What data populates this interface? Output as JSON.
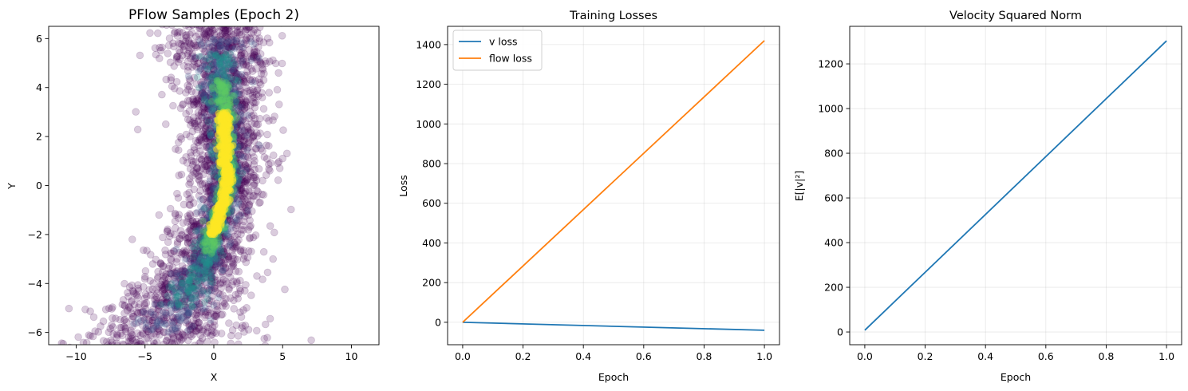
{
  "chart_data": [
    {
      "type": "scatter",
      "title": "PFlow Samples (Epoch 2)",
      "xlabel": "X",
      "ylabel": "Y",
      "xlim": [
        -12,
        12
      ],
      "ylim": [
        -6.5,
        6.5
      ],
      "xticks": [
        "−10",
        "−5",
        "0",
        "5",
        "10"
      ],
      "xtick_values": [
        -10,
        -5,
        0,
        5,
        10
      ],
      "yticks": [
        "−6",
        "−4",
        "−2",
        "0",
        "2",
        "4",
        "6"
      ],
      "ytick_values": [
        -6,
        -4,
        -2,
        0,
        2,
        4,
        6
      ],
      "grid": false,
      "colormap": "viridis",
      "marker_alpha": 0.2,
      "marker_color": "#440154",
      "density": "samples concentrated along a curved band from (-4,-6) through (0,-3) to (1,0) and up to (0.5,6); densest (yellow) near x≈1, y between -2 and 3"
    },
    {
      "type": "line",
      "title": "Training Losses",
      "xlabel": "Epoch",
      "ylabel": "Loss",
      "xlim": [
        -0.05,
        1.05
      ],
      "ylim": [
        -113,
        1492
      ],
      "xticks": [
        "0.0",
        "0.2",
        "0.4",
        "0.6",
        "0.8",
        "1.0"
      ],
      "xtick_values": [
        0,
        0.2,
        0.4,
        0.6,
        0.8,
        1.0
      ],
      "yticks": [
        "0",
        "200",
        "400",
        "600",
        "800",
        "1000",
        "1200",
        "1400"
      ],
      "ytick_values": [
        0,
        200,
        400,
        600,
        800,
        1000,
        1200,
        1400
      ],
      "grid": true,
      "legend": "top-left",
      "x": [
        0,
        1
      ],
      "series": [
        {
          "name": "v loss",
          "values": [
            0,
            -40
          ],
          "color": "#1f77b4"
        },
        {
          "name": "flow loss",
          "values": [
            0,
            1420
          ],
          "color": "#ff7f0e"
        }
      ]
    },
    {
      "type": "line",
      "title": "Velocity Squared Norm",
      "xlabel": "Epoch",
      "ylabel": "E[|v|²]",
      "xlim": [
        -0.05,
        1.05
      ],
      "ylim": [
        -57,
        1368
      ],
      "xticks": [
        "0.0",
        "0.2",
        "0.4",
        "0.6",
        "0.8",
        "1.0"
      ],
      "xtick_values": [
        0,
        0.2,
        0.4,
        0.6,
        0.8,
        1.0
      ],
      "yticks": [
        "0",
        "200",
        "400",
        "600",
        "800",
        "1000",
        "1200"
      ],
      "ytick_values": [
        0,
        200,
        400,
        600,
        800,
        1000,
        1200
      ],
      "grid": true,
      "x": [
        0,
        1
      ],
      "series": [
        {
          "values": [
            8,
            1303
          ],
          "color": "#1f77b4"
        }
      ]
    }
  ]
}
